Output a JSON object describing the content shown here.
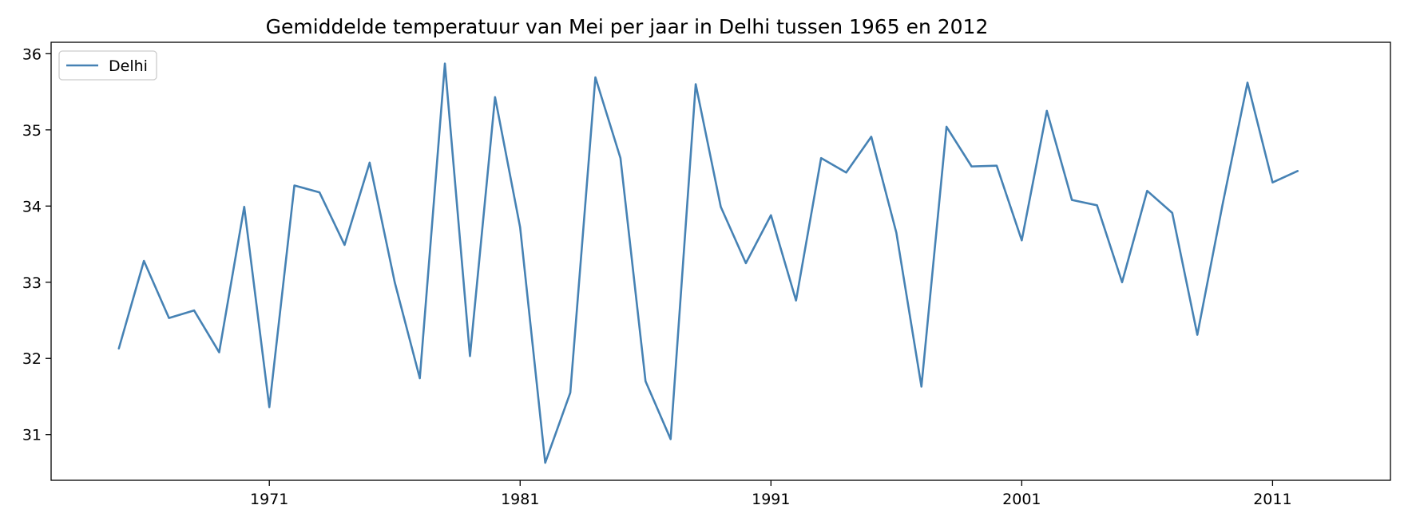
{
  "chart_data": {
    "type": "line",
    "title": "Gemiddelde temperatuur van Mei per jaar in Delhi tussen 1965 en 2012",
    "xlabel": "",
    "ylabel": "",
    "xlim": [
      1962.3,
      2015.7
    ],
    "ylim": [
      30.4,
      36.15
    ],
    "x_ticks": [
      1971,
      1981,
      1991,
      2001,
      2011
    ],
    "y_ticks": [
      31,
      32,
      33,
      34,
      35,
      36
    ],
    "grid": false,
    "legend_position": "top-left",
    "colors": {
      "series": "#4682b4",
      "frame": "#000000",
      "background": "#ffffff"
    },
    "x": [
      1965,
      1966,
      1967,
      1968,
      1969,
      1970,
      1971,
      1972,
      1973,
      1974,
      1975,
      1976,
      1977,
      1978,
      1979,
      1980,
      1981,
      1982,
      1983,
      1984,
      1985,
      1986,
      1987,
      1988,
      1989,
      1990,
      1991,
      1992,
      1993,
      1994,
      1995,
      1996,
      1997,
      1998,
      1999,
      2000,
      2001,
      2002,
      2003,
      2004,
      2005,
      2006,
      2007,
      2008,
      2009,
      2010,
      2011,
      2012
    ],
    "series": [
      {
        "name": "Delhi",
        "values": [
          32.13,
          33.28,
          32.53,
          32.63,
          32.08,
          33.99,
          31.36,
          34.27,
          34.18,
          33.49,
          34.57,
          33.0,
          31.74,
          35.87,
          32.03,
          35.43,
          33.72,
          30.63,
          31.55,
          35.69,
          34.63,
          31.7,
          30.94,
          35.6,
          33.99,
          33.25,
          33.88,
          32.76,
          34.63,
          34.44,
          34.91,
          33.65,
          31.63,
          35.04,
          34.52,
          34.53,
          33.55,
          35.25,
          34.08,
          34.01,
          33.0,
          34.2,
          33.91,
          32.31,
          34.01,
          35.62,
          34.31,
          34.46
        ]
      }
    ]
  }
}
